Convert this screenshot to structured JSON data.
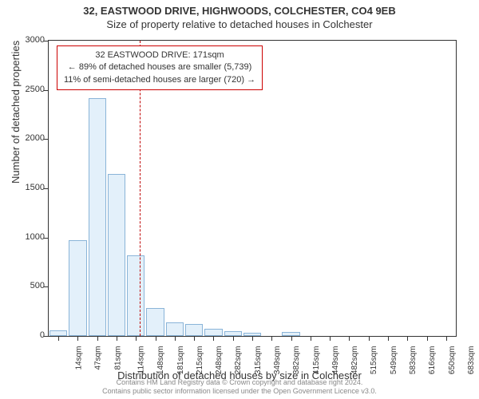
{
  "title": "32, EASTWOOD DRIVE, HIGHWOODS, COLCHESTER, CO4 9EB",
  "subtitle": "Size of property relative to detached houses in Colchester",
  "y_axis_label": "Number of detached properties",
  "x_axis_label": "Distribution of detached houses by size in Colchester",
  "footer_line1": "Contains HM Land Registry data © Crown copyright and database right 2024.",
  "footer_line2": "Contains public sector information licensed under the Open Government Licence v3.0.",
  "chart": {
    "type": "bar",
    "background_color": "#ffffff",
    "bar_fill": "#e3f0fa",
    "bar_border": "#8ab4d8",
    "axis_color": "#333333",
    "ref_line_color": "#c00000",
    "ylim": [
      0,
      3000
    ],
    "y_ticks": [
      0,
      500,
      1000,
      1500,
      2000,
      2500,
      3000
    ],
    "x_labels": [
      "14sqm",
      "47sqm",
      "81sqm",
      "114sqm",
      "148sqm",
      "181sqm",
      "215sqm",
      "248sqm",
      "282sqm",
      "315sqm",
      "349sqm",
      "382sqm",
      "415sqm",
      "449sqm",
      "482sqm",
      "515sqm",
      "549sqm",
      "583sqm",
      "616sqm",
      "650sqm",
      "683sqm"
    ],
    "values": [
      60,
      970,
      2420,
      1650,
      820,
      280,
      140,
      120,
      70,
      50,
      30,
      0,
      40,
      0,
      0,
      0,
      0,
      0,
      0,
      0,
      0
    ],
    "reference_x_index": 4.7
  },
  "info_box": {
    "line1": "32 EASTWOOD DRIVE: 171sqm",
    "line2": "← 89% of detached houses are smaller (5,739)",
    "line3": "11% of semi-detached houses are larger (720) →"
  }
}
